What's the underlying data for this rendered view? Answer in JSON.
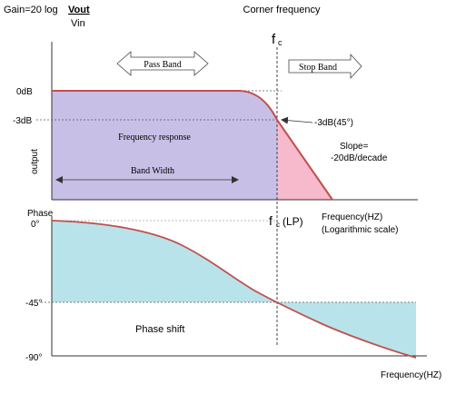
{
  "gain_formula": {
    "prefix": "Gain=20 log",
    "numerator": "Vout",
    "denominator": "Vin"
  },
  "magnitude": {
    "corner_label": "Corner frequency",
    "fc_symbol": "f",
    "fc_subscript": "c",
    "pass_band_label": "Pass Band",
    "stop_band_label": "Stop Band",
    "y_axis_label": "output",
    "tick_0db": "0dB",
    "tick_minus3db": "-3dB",
    "frequency_response_label": "Frequency response",
    "bandwidth_label": "Band Width",
    "corner_annotation": "-3dB(45°)",
    "slope_line1": "Slope=",
    "slope_line2": "-20dB/decade",
    "fc_lp_suffix": "(LP)",
    "x_axis_label_line1": "Frequency(HZ)",
    "x_axis_label_line2": "(Logarithmic scale)"
  },
  "phase": {
    "y_axis_label": "Phase",
    "tick_0": "0°",
    "tick_45": "-45°",
    "tick_90": "-90°",
    "phase_shift_label": "Phase shift",
    "x_axis_label": "Frequency(HZ)"
  },
  "colors": {
    "passband_fill": "#c8bfe6",
    "stopband_fill": "#f7b9cc",
    "phase_fill": "#b9e3ea",
    "curve": "#c0504d"
  }
}
